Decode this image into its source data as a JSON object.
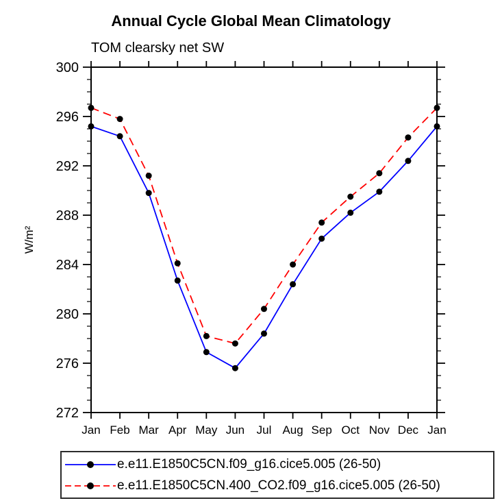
{
  "chart_data": {
    "type": "line",
    "title": "Annual Cycle Global Mean Climatology",
    "subtitle": "TOM clearsky net SW",
    "ylabel": "W/m²",
    "xlabel": "",
    "categories": [
      "Jan",
      "Feb",
      "Mar",
      "Apr",
      "May",
      "Jun",
      "Jul",
      "Aug",
      "Sep",
      "Oct",
      "Nov",
      "Dec",
      "Jan"
    ],
    "ylim": [
      272,
      300
    ],
    "ytick_step": 4,
    "yminor_step": 1,
    "grid": false,
    "legend_position": "bottom",
    "series": [
      {
        "name": "e.e11.E1850C5CN.f09_g16.cice5.005 (26-50)",
        "color": "#0000ff",
        "style": "solid",
        "marker": "circle",
        "marker_color": "#000000",
        "values": [
          295.2,
          294.4,
          289.8,
          282.7,
          276.9,
          275.6,
          278.4,
          282.4,
          286.1,
          288.2,
          289.9,
          292.4,
          295.2
        ]
      },
      {
        "name": "e.e11.E1850C5CN.400_CO2.f09_g16.cice5.005 (26-50)",
        "color": "#ff0000",
        "style": "dashed",
        "marker": "circle",
        "marker_color": "#000000",
        "values": [
          296.7,
          295.8,
          291.2,
          284.1,
          278.2,
          277.6,
          280.4,
          284.0,
          287.4,
          289.5,
          291.4,
          294.3,
          296.7
        ]
      }
    ],
    "colors": {
      "axis": "#000000",
      "text": "#000000",
      "background": "#ffffff"
    }
  }
}
